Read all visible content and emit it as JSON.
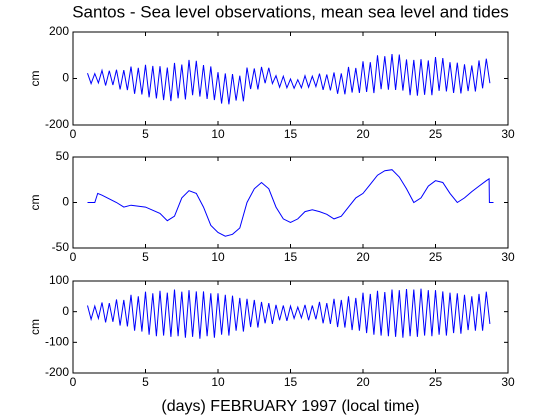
{
  "chart_data": [
    {
      "type": "line",
      "title": "Santos - Sea level observations, mean sea level and tides",
      "ylabel": "cm",
      "x": [
        1,
        1.25,
        1.5,
        1.75,
        2,
        2.25,
        2.5,
        2.75,
        3,
        3.25,
        3.5,
        3.75,
        4,
        4.25,
        4.5,
        4.75,
        5,
        5.25,
        5.5,
        5.75,
        6,
        6.25,
        6.5,
        6.75,
        7,
        7.25,
        7.5,
        7.75,
        8,
        8.25,
        8.5,
        8.75,
        9,
        9.25,
        9.5,
        9.75,
        10,
        10.25,
        10.5,
        10.75,
        11,
        11.25,
        11.5,
        11.75,
        12,
        12.25,
        12.5,
        12.75,
        13,
        13.25,
        13.5,
        13.75,
        14,
        14.25,
        14.5,
        14.75,
        15,
        15.25,
        15.5,
        15.75,
        16,
        16.25,
        16.5,
        16.75,
        17,
        17.25,
        17.5,
        17.75,
        18,
        18.25,
        18.5,
        18.75,
        19,
        19.25,
        19.5,
        19.75,
        20,
        20.25,
        20.5,
        20.75,
        21,
        21.25,
        21.5,
        21.75,
        22,
        22.25,
        22.5,
        22.75,
        23,
        23.25,
        23.5,
        23.75,
        24,
        24.25,
        24.5,
        24.75,
        25,
        25.25,
        25.5,
        25.75,
        26,
        26.25,
        26.5,
        26.75,
        27,
        27.25,
        27.5,
        27.75,
        28,
        28.25,
        28.5,
        28.75
      ],
      "color": "#0000ff",
      "values": [
        23,
        -22,
        21,
        -19,
        35,
        -30,
        33,
        -28,
        38,
        -47,
        36,
        -50,
        51,
        -66,
        46,
        -69,
        59,
        -81,
        54,
        -86,
        53,
        -93,
        47,
        -97,
        67,
        -85,
        60,
        -90,
        80,
        -72,
        76,
        -78,
        58,
        -88,
        52,
        -93,
        27,
        -108,
        22,
        -111,
        19,
        -95,
        12,
        -98,
        47,
        -45,
        43,
        -47,
        50,
        -20,
        46,
        -22,
        12,
        -38,
        10,
        -40,
        -2,
        -42,
        -5,
        -40,
        12,
        -38,
        10,
        -35,
        21,
        -49,
        17,
        -51,
        26,
        -66,
        22,
        -68,
        50,
        -60,
        45,
        -62,
        74,
        -58,
        70,
        -63,
        100,
        -46,
        96,
        -48,
        105,
        -49,
        103,
        -52,
        82,
        -72,
        80,
        -74,
        83,
        -70,
        78,
        -72,
        92,
        -53,
        88,
        -56,
        70,
        -62,
        68,
        -64,
        61,
        -54,
        56,
        -56,
        78,
        -42,
        85,
        -20
      ],
      "xlim": [
        0,
        30
      ],
      "xticks": [
        0,
        5,
        10,
        15,
        20,
        25,
        30
      ],
      "ylim": [
        -200,
        200
      ],
      "yticks": [
        -200,
        0,
        200
      ]
    },
    {
      "type": "line",
      "ylabel": "cm",
      "x": [
        1,
        1.5,
        1.7,
        2,
        3,
        3.5,
        4,
        5,
        6,
        6.5,
        7,
        7.5,
        8,
        8.5,
        9,
        9.5,
        10,
        10.5,
        11,
        11.5,
        12,
        12.5,
        13,
        13.5,
        14,
        14.5,
        15,
        15.5,
        16,
        16.5,
        17,
        17.5,
        18,
        18.5,
        19,
        19.5,
        20,
        20.5,
        21,
        21.5,
        22,
        22.5,
        23,
        23.5,
        24,
        24.5,
        25,
        25.5,
        26,
        26.5,
        27,
        27.5,
        28,
        28.5,
        28.7,
        28.72,
        29
      ],
      "color": "#0000ff",
      "values": [
        0,
        0,
        10,
        8,
        0,
        -5,
        -3,
        -5,
        -12,
        -20,
        -15,
        5,
        13,
        10,
        -5,
        -25,
        -33,
        -37,
        -35,
        -28,
        0,
        15,
        22,
        15,
        -5,
        -18,
        -22,
        -18,
        -10,
        -8,
        -10,
        -13,
        -18,
        -15,
        -5,
        5,
        10,
        20,
        30,
        35,
        36,
        28,
        15,
        0,
        5,
        18,
        24,
        22,
        10,
        0,
        5,
        12,
        18,
        24,
        26,
        0,
        0
      ],
      "xlim": [
        0,
        30
      ],
      "xticks": [
        0,
        5,
        10,
        15,
        20,
        25,
        30
      ],
      "ylim": [
        -50,
        50
      ],
      "yticks": [
        -50,
        0,
        50
      ]
    },
    {
      "type": "line",
      "ylabel": "cm",
      "xlabel": "(days) FEBRUARY 1997 (local time)",
      "x": [
        1,
        1.25,
        1.5,
        1.75,
        2,
        2.25,
        2.5,
        2.75,
        3,
        3.25,
        3.5,
        3.75,
        4,
        4.25,
        4.5,
        4.75,
        5,
        5.25,
        5.5,
        5.75,
        6,
        6.25,
        6.5,
        6.75,
        7,
        7.25,
        7.5,
        7.75,
        8,
        8.25,
        8.5,
        8.75,
        9,
        9.25,
        9.5,
        9.75,
        10,
        10.25,
        10.5,
        10.75,
        11,
        11.25,
        11.5,
        11.75,
        12,
        12.25,
        12.5,
        12.75,
        13,
        13.25,
        13.5,
        13.75,
        14,
        14.25,
        14.5,
        14.75,
        15,
        15.25,
        15.5,
        15.75,
        16,
        16.25,
        16.5,
        16.75,
        17,
        17.25,
        17.5,
        17.75,
        18,
        18.25,
        18.5,
        18.75,
        19,
        19.25,
        19.5,
        19.75,
        20,
        20.25,
        20.5,
        20.75,
        21,
        21.25,
        21.5,
        21.75,
        22,
        22.25,
        22.5,
        22.75,
        23,
        23.25,
        23.5,
        23.75,
        24,
        24.25,
        24.5,
        24.75,
        25,
        25.25,
        25.5,
        25.75,
        26,
        26.25,
        26.5,
        26.75,
        27,
        27.25,
        27.5,
        27.75,
        28,
        28.25,
        28.5,
        28.75
      ],
      "color": "#0000ff",
      "values": [
        20,
        -25,
        18,
        -22,
        30,
        -35,
        28,
        -33,
        40,
        -45,
        38,
        -48,
        55,
        -62,
        50,
        -65,
        65,
        -75,
        60,
        -80,
        68,
        -78,
        62,
        -82,
        72,
        -80,
        65,
        -85,
        70,
        -82,
        66,
        -88,
        66,
        -80,
        60,
        -85,
        60,
        -75,
        55,
        -78,
        52,
        -62,
        45,
        -65,
        42,
        -50,
        38,
        -52,
        32,
        -38,
        28,
        -40,
        22,
        -28,
        20,
        -30,
        18,
        -22,
        15,
        -20,
        22,
        -28,
        20,
        -25,
        32,
        -38,
        28,
        -40,
        42,
        -50,
        38,
        -52,
        50,
        -60,
        45,
        -62,
        62,
        -70,
        58,
        -75,
        68,
        -78,
        64,
        -80,
        72,
        -82,
        70,
        -85,
        74,
        -80,
        72,
        -82,
        75,
        -78,
        70,
        -80,
        70,
        -75,
        66,
        -78,
        62,
        -70,
        60,
        -72,
        55,
        -60,
        50,
        -62,
        58,
        -62,
        65,
        -40
      ],
      "xlim": [
        0,
        30
      ],
      "xticks": [
        0,
        5,
        10,
        15,
        20,
        25,
        30
      ],
      "ylim": [
        -200,
        100
      ],
      "yticks": [
        -200,
        -100,
        0,
        100
      ]
    }
  ]
}
